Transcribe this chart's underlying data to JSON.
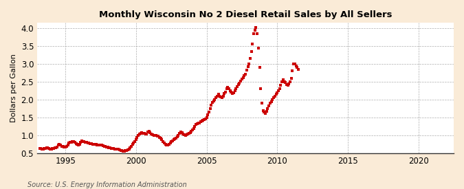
{
  "title": "Monthly Wisconsin No 2 Diesel Retail Sales by All Sellers",
  "ylabel": "Dollars per Gallon",
  "source": "Source: U.S. Energy Information Administration",
  "background_color": "#faebd7",
  "plot_bg_color": "#ffffff",
  "marker_color": "#cc0000",
  "xlim": [
    1993.0,
    2022.5
  ],
  "ylim": [
    0.5,
    4.15
  ],
  "yticks": [
    0.5,
    1.0,
    1.5,
    2.0,
    2.5,
    3.0,
    3.5,
    4.0
  ],
  "xticks": [
    1995,
    2000,
    2005,
    2010,
    2015,
    2020
  ],
  "data": [
    [
      1993.17,
      0.63
    ],
    [
      1993.25,
      0.63
    ],
    [
      1993.33,
      0.62
    ],
    [
      1993.42,
      0.62
    ],
    [
      1993.5,
      0.63
    ],
    [
      1993.58,
      0.64
    ],
    [
      1993.67,
      0.65
    ],
    [
      1993.75,
      0.65
    ],
    [
      1993.83,
      0.63
    ],
    [
      1993.92,
      0.62
    ],
    [
      1994.0,
      0.62
    ],
    [
      1994.08,
      0.63
    ],
    [
      1994.17,
      0.64
    ],
    [
      1994.25,
      0.65
    ],
    [
      1994.33,
      0.66
    ],
    [
      1994.42,
      0.68
    ],
    [
      1994.5,
      0.72
    ],
    [
      1994.58,
      0.74
    ],
    [
      1994.67,
      0.72
    ],
    [
      1994.75,
      0.7
    ],
    [
      1994.83,
      0.69
    ],
    [
      1994.92,
      0.68
    ],
    [
      1995.0,
      0.68
    ],
    [
      1995.08,
      0.7
    ],
    [
      1995.17,
      0.73
    ],
    [
      1995.25,
      0.78
    ],
    [
      1995.33,
      0.8
    ],
    [
      1995.42,
      0.81
    ],
    [
      1995.5,
      0.82
    ],
    [
      1995.58,
      0.82
    ],
    [
      1995.67,
      0.8
    ],
    [
      1995.75,
      0.76
    ],
    [
      1995.83,
      0.74
    ],
    [
      1995.92,
      0.72
    ],
    [
      1996.0,
      0.74
    ],
    [
      1996.08,
      0.8
    ],
    [
      1996.17,
      0.84
    ],
    [
      1996.25,
      0.83
    ],
    [
      1996.33,
      0.82
    ],
    [
      1996.42,
      0.81
    ],
    [
      1996.5,
      0.8
    ],
    [
      1996.58,
      0.79
    ],
    [
      1996.67,
      0.78
    ],
    [
      1996.75,
      0.77
    ],
    [
      1996.83,
      0.76
    ],
    [
      1996.92,
      0.75
    ],
    [
      1997.0,
      0.74
    ],
    [
      1997.08,
      0.74
    ],
    [
      1997.17,
      0.74
    ],
    [
      1997.25,
      0.73
    ],
    [
      1997.33,
      0.72
    ],
    [
      1997.42,
      0.72
    ],
    [
      1997.5,
      0.72
    ],
    [
      1997.58,
      0.72
    ],
    [
      1997.67,
      0.71
    ],
    [
      1997.75,
      0.7
    ],
    [
      1997.83,
      0.69
    ],
    [
      1997.92,
      0.68
    ],
    [
      1998.0,
      0.67
    ],
    [
      1998.08,
      0.66
    ],
    [
      1998.17,
      0.65
    ],
    [
      1998.25,
      0.64
    ],
    [
      1998.33,
      0.63
    ],
    [
      1998.42,
      0.63
    ],
    [
      1998.5,
      0.62
    ],
    [
      1998.58,
      0.62
    ],
    [
      1998.67,
      0.62
    ],
    [
      1998.75,
      0.61
    ],
    [
      1998.83,
      0.6
    ],
    [
      1998.92,
      0.58
    ],
    [
      1999.0,
      0.57
    ],
    [
      1999.08,
      0.56
    ],
    [
      1999.17,
      0.56
    ],
    [
      1999.25,
      0.57
    ],
    [
      1999.33,
      0.58
    ],
    [
      1999.42,
      0.59
    ],
    [
      1999.5,
      0.62
    ],
    [
      1999.58,
      0.66
    ],
    [
      1999.67,
      0.7
    ],
    [
      1999.75,
      0.74
    ],
    [
      1999.83,
      0.78
    ],
    [
      1999.92,
      0.82
    ],
    [
      2000.0,
      0.88
    ],
    [
      2000.08,
      0.94
    ],
    [
      2000.17,
      1.0
    ],
    [
      2000.25,
      1.04
    ],
    [
      2000.33,
      1.06
    ],
    [
      2000.42,
      1.07
    ],
    [
      2000.5,
      1.06
    ],
    [
      2000.58,
      1.05
    ],
    [
      2000.67,
      1.04
    ],
    [
      2000.75,
      1.04
    ],
    [
      2000.83,
      1.1
    ],
    [
      2000.92,
      1.12
    ],
    [
      2001.0,
      1.08
    ],
    [
      2001.08,
      1.04
    ],
    [
      2001.17,
      1.02
    ],
    [
      2001.25,
      1.0
    ],
    [
      2001.33,
      1.0
    ],
    [
      2001.42,
      0.99
    ],
    [
      2001.5,
      0.98
    ],
    [
      2001.58,
      0.97
    ],
    [
      2001.67,
      0.95
    ],
    [
      2001.75,
      0.92
    ],
    [
      2001.83,
      0.88
    ],
    [
      2001.92,
      0.82
    ],
    [
      2002.0,
      0.78
    ],
    [
      2002.08,
      0.74
    ],
    [
      2002.17,
      0.72
    ],
    [
      2002.25,
      0.72
    ],
    [
      2002.33,
      0.75
    ],
    [
      2002.42,
      0.78
    ],
    [
      2002.5,
      0.82
    ],
    [
      2002.58,
      0.85
    ],
    [
      2002.67,
      0.88
    ],
    [
      2002.75,
      0.9
    ],
    [
      2002.83,
      0.93
    ],
    [
      2002.92,
      0.96
    ],
    [
      2003.0,
      1.0
    ],
    [
      2003.08,
      1.05
    ],
    [
      2003.17,
      1.1
    ],
    [
      2003.25,
      1.08
    ],
    [
      2003.33,
      1.04
    ],
    [
      2003.42,
      1.02
    ],
    [
      2003.5,
      1.0
    ],
    [
      2003.58,
      1.02
    ],
    [
      2003.67,
      1.04
    ],
    [
      2003.75,
      1.06
    ],
    [
      2003.83,
      1.08
    ],
    [
      2003.92,
      1.12
    ],
    [
      2004.0,
      1.15
    ],
    [
      2004.08,
      1.2
    ],
    [
      2004.17,
      1.25
    ],
    [
      2004.25,
      1.3
    ],
    [
      2004.33,
      1.32
    ],
    [
      2004.42,
      1.34
    ],
    [
      2004.5,
      1.35
    ],
    [
      2004.58,
      1.38
    ],
    [
      2004.67,
      1.4
    ],
    [
      2004.75,
      1.42
    ],
    [
      2004.83,
      1.44
    ],
    [
      2004.92,
      1.46
    ],
    [
      2005.0,
      1.5
    ],
    [
      2005.08,
      1.57
    ],
    [
      2005.17,
      1.65
    ],
    [
      2005.25,
      1.75
    ],
    [
      2005.33,
      1.85
    ],
    [
      2005.42,
      1.92
    ],
    [
      2005.5,
      1.97
    ],
    [
      2005.58,
      2.0
    ],
    [
      2005.67,
      2.05
    ],
    [
      2005.75,
      2.1
    ],
    [
      2005.83,
      2.15
    ],
    [
      2005.92,
      2.1
    ],
    [
      2006.0,
      2.08
    ],
    [
      2006.08,
      2.05
    ],
    [
      2006.17,
      2.1
    ],
    [
      2006.25,
      2.18
    ],
    [
      2006.33,
      2.22
    ],
    [
      2006.42,
      2.3
    ],
    [
      2006.5,
      2.35
    ],
    [
      2006.58,
      2.3
    ],
    [
      2006.67,
      2.25
    ],
    [
      2006.75,
      2.22
    ],
    [
      2006.83,
      2.18
    ],
    [
      2006.92,
      2.2
    ],
    [
      2007.0,
      2.25
    ],
    [
      2007.08,
      2.3
    ],
    [
      2007.17,
      2.37
    ],
    [
      2007.25,
      2.42
    ],
    [
      2007.33,
      2.47
    ],
    [
      2007.42,
      2.52
    ],
    [
      2007.5,
      2.57
    ],
    [
      2007.58,
      2.62
    ],
    [
      2007.67,
      2.67
    ],
    [
      2007.75,
      2.72
    ],
    [
      2007.83,
      2.82
    ],
    [
      2007.92,
      2.92
    ],
    [
      2008.0,
      3.0
    ],
    [
      2008.08,
      3.15
    ],
    [
      2008.17,
      3.35
    ],
    [
      2008.25,
      3.55
    ],
    [
      2008.33,
      3.85
    ],
    [
      2008.42,
      3.95
    ],
    [
      2008.5,
      4.02
    ],
    [
      2008.58,
      3.85
    ],
    [
      2008.67,
      3.45
    ],
    [
      2008.75,
      2.9
    ],
    [
      2008.83,
      2.3
    ],
    [
      2008.92,
      1.9
    ],
    [
      2009.0,
      1.7
    ],
    [
      2009.08,
      1.65
    ],
    [
      2009.17,
      1.62
    ],
    [
      2009.25,
      1.68
    ],
    [
      2009.33,
      1.75
    ],
    [
      2009.42,
      1.82
    ],
    [
      2009.5,
      1.9
    ],
    [
      2009.58,
      1.95
    ],
    [
      2009.67,
      2.0
    ],
    [
      2009.75,
      2.05
    ],
    [
      2009.83,
      2.1
    ],
    [
      2009.92,
      2.15
    ],
    [
      2010.0,
      2.2
    ],
    [
      2010.08,
      2.25
    ],
    [
      2010.17,
      2.3
    ],
    [
      2010.25,
      2.4
    ],
    [
      2010.33,
      2.5
    ],
    [
      2010.42,
      2.55
    ],
    [
      2010.5,
      2.5
    ],
    [
      2010.58,
      2.48
    ],
    [
      2010.67,
      2.42
    ],
    [
      2010.75,
      2.4
    ],
    [
      2010.83,
      2.45
    ],
    [
      2010.92,
      2.5
    ],
    [
      2011.0,
      2.6
    ],
    [
      2011.08,
      2.8
    ],
    [
      2011.17,
      3.0
    ],
    [
      2011.25,
      3.0
    ],
    [
      2011.33,
      2.95
    ],
    [
      2011.42,
      2.9
    ],
    [
      2011.5,
      2.85
    ]
  ]
}
